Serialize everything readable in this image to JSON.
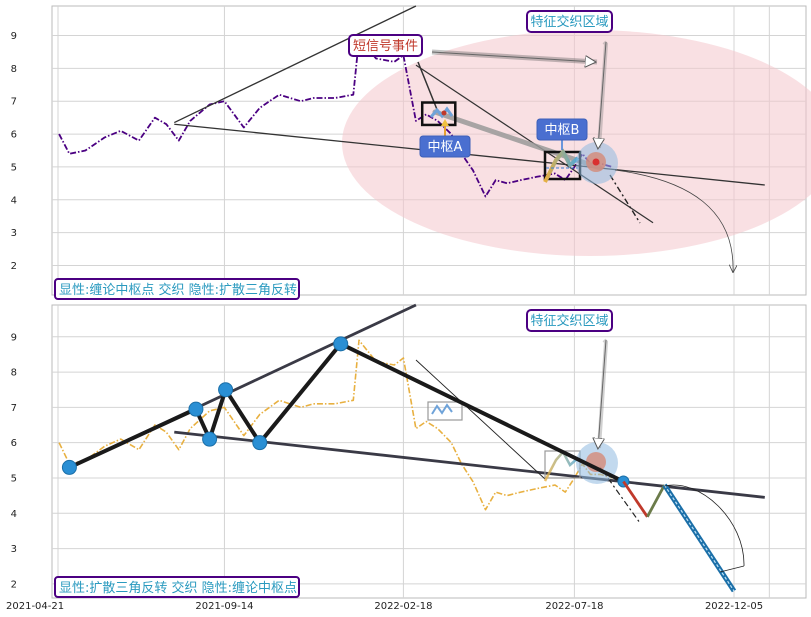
{
  "chart_data": [
    {
      "type": "line",
      "panel": "top",
      "ylim": [
        1.1,
        9.9
      ],
      "yticks": [
        "2",
        "3",
        "4",
        "5",
        "6",
        "7",
        "8",
        "9"
      ],
      "grid": true,
      "series": [
        {
          "kind": "price",
          "color": "#4b0082",
          "x": [
            "2021-04-22",
            "2021-05-01",
            "2021-05-15",
            "2021-06-01",
            "2021-06-15",
            "2021-07-01",
            "2021-07-15",
            "2021-07-25",
            "2021-08-05",
            "2021-08-15",
            "2021-09-01",
            "2021-09-14",
            "2021-10-01",
            "2021-10-15",
            "2021-11-01",
            "2021-11-20",
            "2021-12-01",
            "2021-12-20",
            "2022-01-05",
            "2022-01-10",
            "2022-01-25",
            "2022-02-10",
            "2022-02-18",
            "2022-03-01",
            "2022-03-10",
            "2022-03-20",
            "2022-04-01",
            "2022-04-10",
            "2022-04-20",
            "2022-05-01",
            "2022-05-10",
            "2022-05-20",
            "2022-06-01",
            "2022-06-15",
            "2022-07-01",
            "2022-07-10",
            "2022-07-18",
            "2022-07-25",
            "2022-08-01",
            "2022-08-10",
            "2022-08-20"
          ],
          "y": [
            6.0,
            5.4,
            5.5,
            5.9,
            6.1,
            5.8,
            6.5,
            6.3,
            5.8,
            6.4,
            6.9,
            7.0,
            6.2,
            6.8,
            7.2,
            7.0,
            7.1,
            7.1,
            7.2,
            8.9,
            8.3,
            8.2,
            8.4,
            6.4,
            6.6,
            6.4,
            6.0,
            5.4,
            4.9,
            4.1,
            4.6,
            4.5,
            4.6,
            4.7,
            4.8,
            4.6,
            5.0,
            5.4,
            5.1,
            5.1,
            5.0
          ]
        }
      ],
      "zones": [
        {
          "label": "中枢A",
          "x": [
            "2022-03-10",
            "2022-04-01"
          ],
          "y": [
            6.4,
            6.9
          ]
        },
        {
          "label": "中枢B",
          "x": [
            "2022-07-01",
            "2022-08-01"
          ],
          "y": [
            4.7,
            5.5
          ]
        }
      ],
      "trend_lines": [
        {
          "x": [
            "2021-08-01",
            "2022-03-01"
          ],
          "y": [
            6.35,
            9.9
          ]
        },
        {
          "x": [
            "2021-08-01",
            "2023-01-01"
          ],
          "y": [
            6.3,
            4.45
          ]
        },
        {
          "x": [
            "2022-03-01",
            "2022-09-25"
          ],
          "y": [
            8.1,
            3.3
          ]
        }
      ],
      "annotations": {
        "feature_region": "特征交织区域",
        "short_signal": "短信号事件",
        "zhongshu_a": "中枢A",
        "zhongshu_b": "中枢B",
        "legend": "显性:缠论中枢点 交织 隐性:扩散三角反转"
      }
    },
    {
      "type": "line",
      "panel": "bottom",
      "ylim": [
        1.6,
        9.9
      ],
      "yticks": [
        "2",
        "3",
        "4",
        "5",
        "6",
        "7",
        "8",
        "9"
      ],
      "xticks": [
        "2021-04-21",
        "2021-09-14",
        "2022-02-18",
        "2022-07-18",
        "2022-12-05"
      ],
      "grid": true,
      "series": [
        {
          "kind": "price",
          "color": "#e8b040",
          "x": [
            "2021-04-22",
            "2021-05-01",
            "2021-05-15",
            "2021-06-01",
            "2021-06-15",
            "2021-07-01",
            "2021-07-15",
            "2021-07-25",
            "2021-08-05",
            "2021-08-15",
            "2021-09-01",
            "2021-09-14",
            "2021-10-01",
            "2021-10-15",
            "2021-11-01",
            "2021-11-20",
            "2021-12-01",
            "2021-12-20",
            "2022-01-05",
            "2022-01-10",
            "2022-01-25",
            "2022-02-10",
            "2022-02-18",
            "2022-03-01",
            "2022-03-10",
            "2022-03-20",
            "2022-04-01",
            "2022-04-10",
            "2022-04-20",
            "2022-05-01",
            "2022-05-10",
            "2022-05-20",
            "2022-06-01",
            "2022-06-15",
            "2022-07-01",
            "2022-07-10",
            "2022-07-18",
            "2022-07-25",
            "2022-08-01",
            "2022-08-10",
            "2022-08-20"
          ],
          "y": [
            6.0,
            5.4,
            5.5,
            5.9,
            6.1,
            5.8,
            6.5,
            6.3,
            5.8,
            6.4,
            6.9,
            7.0,
            6.2,
            6.8,
            7.2,
            7.0,
            7.1,
            7.1,
            7.2,
            8.9,
            8.3,
            8.2,
            8.4,
            6.4,
            6.6,
            6.4,
            6.0,
            5.4,
            4.9,
            4.1,
            4.6,
            4.5,
            4.6,
            4.7,
            4.8,
            4.6,
            5.0,
            5.4,
            5.1,
            5.1,
            5.0
          ]
        },
        {
          "kind": "triangle_pivots",
          "color": "#1a1a1a",
          "x": [
            "2021-05-01",
            "2021-08-20",
            "2021-09-01",
            "2021-09-15",
            "2021-10-15",
            "2021-12-25",
            "2022-08-30"
          ],
          "y": [
            5.3,
            6.95,
            6.1,
            7.5,
            6.0,
            8.8,
            4.9
          ]
        },
        {
          "kind": "projection",
          "x": [
            "2022-08-30",
            "2022-09-20",
            "2022-10-05",
            "2022-12-05"
          ],
          "y": [
            4.9,
            3.9,
            4.8,
            1.8
          ]
        }
      ],
      "trend_lines": [
        {
          "x": [
            "2021-05-01",
            "2022-03-01"
          ],
          "y": [
            5.3,
            9.9
          ]
        },
        {
          "x": [
            "2021-08-01",
            "2023-01-01"
          ],
          "y": [
            6.3,
            4.45
          ]
        }
      ],
      "annotations": {
        "feature_region": "特征交织区域",
        "legend": "显性:扩散三角反转 交织 隐性:缠论中枢点"
      }
    }
  ]
}
